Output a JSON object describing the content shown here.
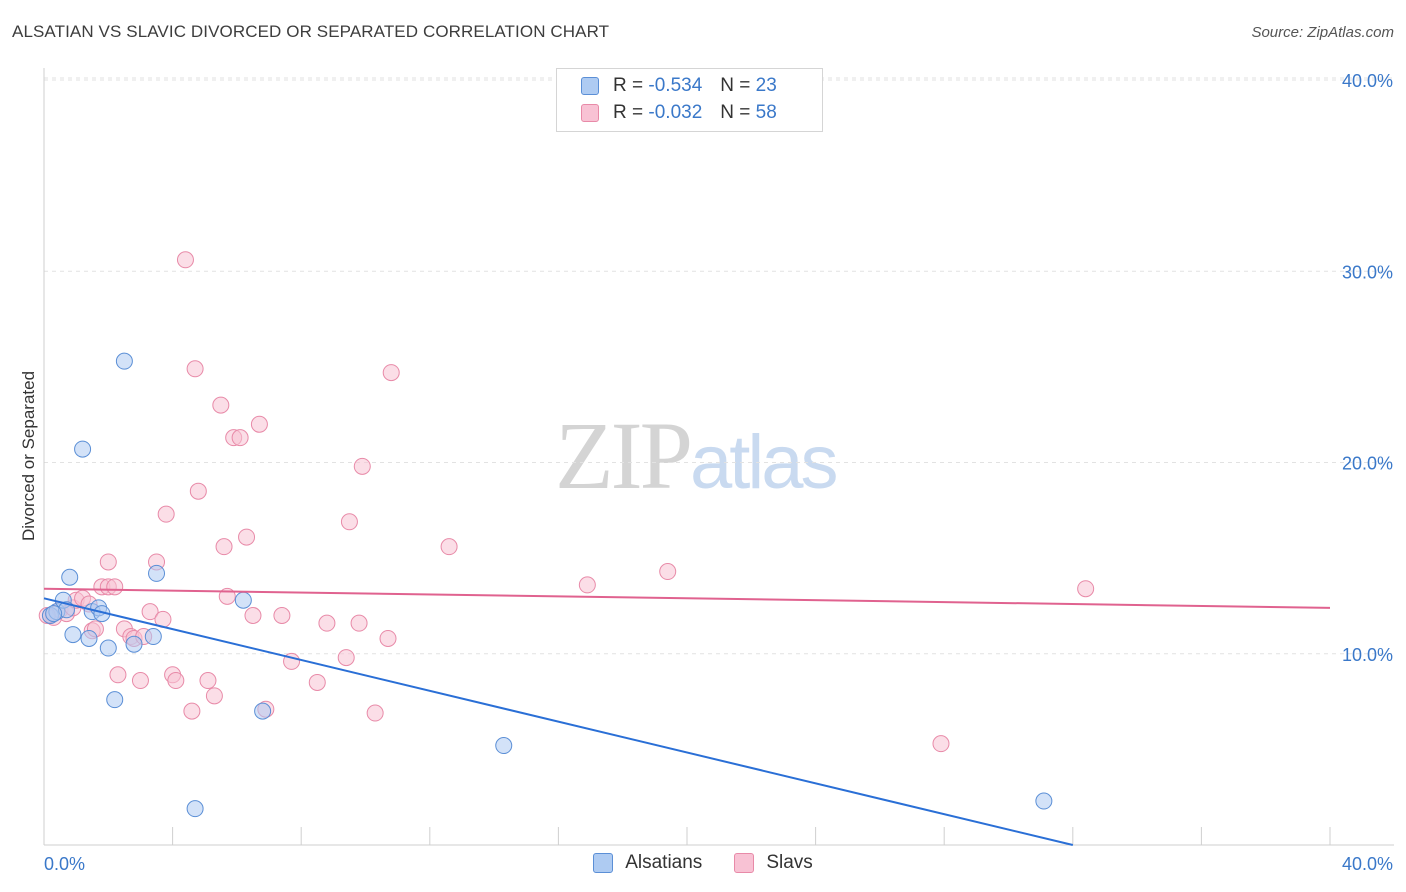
{
  "title": "ALSATIAN VS SLAVIC DIVORCED OR SEPARATED CORRELATION CHART",
  "source": "Source: ZipAtlas.com",
  "watermark": {
    "zip": "ZIP",
    "atlas": "atlas"
  },
  "legend_top": [
    {
      "r_label": "R =",
      "r_value": "-0.534",
      "n_label": "N =",
      "n_value": "23"
    },
    {
      "r_label": "R =",
      "r_value": "-0.032",
      "n_label": "N =",
      "n_value": "58"
    }
  ],
  "legend_bottom": [
    "Alsatians",
    "Slavs"
  ],
  "colors": {
    "alsatians_fill": "#aecbf2",
    "alsatians_stroke": "#5b8fd6",
    "alsatians_line": "#2a6fd6",
    "slavs_fill": "#f8c2d4",
    "slavs_stroke": "#e88aa8",
    "slavs_line": "#e0628f",
    "tick_text": "#3a78c9"
  },
  "chart_data": {
    "type": "scatter",
    "title": "ALSATIAN VS SLAVIC DIVORCED OR SEPARATED CORRELATION CHART",
    "xlabel": "",
    "ylabel": "Divorced or Separated",
    "xlim": [
      0,
      40
    ],
    "ylim": [
      0,
      40
    ],
    "x_tick_labels": [
      "0.0%",
      "40.0%"
    ],
    "y_ticks": [
      10,
      20,
      30,
      40
    ],
    "y_tick_labels": [
      "10.0%",
      "20.0%",
      "30.0%",
      "40.0%"
    ],
    "grid": true,
    "legend_position": "top-center",
    "series": [
      {
        "name": "Alsatians",
        "points": [
          [
            0.2,
            12.0
          ],
          [
            0.4,
            12.2
          ],
          [
            0.6,
            12.8
          ],
          [
            0.7,
            12.3
          ],
          [
            0.8,
            14.0
          ],
          [
            0.9,
            11.0
          ],
          [
            1.4,
            10.8
          ],
          [
            1.5,
            12.2
          ],
          [
            1.7,
            12.4
          ],
          [
            1.8,
            12.1
          ],
          [
            1.2,
            20.7
          ],
          [
            2.0,
            10.3
          ],
          [
            2.2,
            7.6
          ],
          [
            2.5,
            25.3
          ],
          [
            2.8,
            10.5
          ],
          [
            3.4,
            10.9
          ],
          [
            3.5,
            14.2
          ],
          [
            4.7,
            1.9
          ],
          [
            6.2,
            12.8
          ],
          [
            6.8,
            7.0
          ],
          [
            14.3,
            5.2
          ],
          [
            31.1,
            2.3
          ],
          [
            0.3,
            12.1
          ]
        ],
        "trend": {
          "x": [
            0,
            32
          ],
          "y": [
            12.9,
            0.0
          ]
        }
      },
      {
        "name": "Slavs",
        "points": [
          [
            0.2,
            12.0
          ],
          [
            0.3,
            11.9
          ],
          [
            0.5,
            12.3
          ],
          [
            0.7,
            12.1
          ],
          [
            0.9,
            12.4
          ],
          [
            1.0,
            12.8
          ],
          [
            1.2,
            12.9
          ],
          [
            1.4,
            12.6
          ],
          [
            1.5,
            11.2
          ],
          [
            1.6,
            11.3
          ],
          [
            1.8,
            13.5
          ],
          [
            2.0,
            13.5
          ],
          [
            2.0,
            14.8
          ],
          [
            2.2,
            13.5
          ],
          [
            2.3,
            8.9
          ],
          [
            2.5,
            11.3
          ],
          [
            2.7,
            10.9
          ],
          [
            2.8,
            10.8
          ],
          [
            3.0,
            8.6
          ],
          [
            3.1,
            10.9
          ],
          [
            3.3,
            12.2
          ],
          [
            3.5,
            14.8
          ],
          [
            3.7,
            11.8
          ],
          [
            3.8,
            17.3
          ],
          [
            4.0,
            8.9
          ],
          [
            4.1,
            8.6
          ],
          [
            4.4,
            30.6
          ],
          [
            4.6,
            7.0
          ],
          [
            4.7,
            24.9
          ],
          [
            4.8,
            18.5
          ],
          [
            5.1,
            8.6
          ],
          [
            5.3,
            7.8
          ],
          [
            5.5,
            23.0
          ],
          [
            5.6,
            15.6
          ],
          [
            5.7,
            13.0
          ],
          [
            5.9,
            21.3
          ],
          [
            6.1,
            21.3
          ],
          [
            6.3,
            16.1
          ],
          [
            6.5,
            12.0
          ],
          [
            6.7,
            22.0
          ],
          [
            6.9,
            7.1
          ],
          [
            7.4,
            12.0
          ],
          [
            7.7,
            9.6
          ],
          [
            8.5,
            8.5
          ],
          [
            8.8,
            11.6
          ],
          [
            9.4,
            9.8
          ],
          [
            9.5,
            16.9
          ],
          [
            9.8,
            11.6
          ],
          [
            9.9,
            19.8
          ],
          [
            10.3,
            6.9
          ],
          [
            10.7,
            10.8
          ],
          [
            10.8,
            24.7
          ],
          [
            12.6,
            15.6
          ],
          [
            16.9,
            13.6
          ],
          [
            19.4,
            14.3
          ],
          [
            27.9,
            5.3
          ],
          [
            32.4,
            13.4
          ],
          [
            0.1,
            12.0
          ]
        ],
        "trend": {
          "x": [
            0,
            40
          ],
          "y": [
            13.4,
            12.4
          ]
        }
      }
    ]
  }
}
